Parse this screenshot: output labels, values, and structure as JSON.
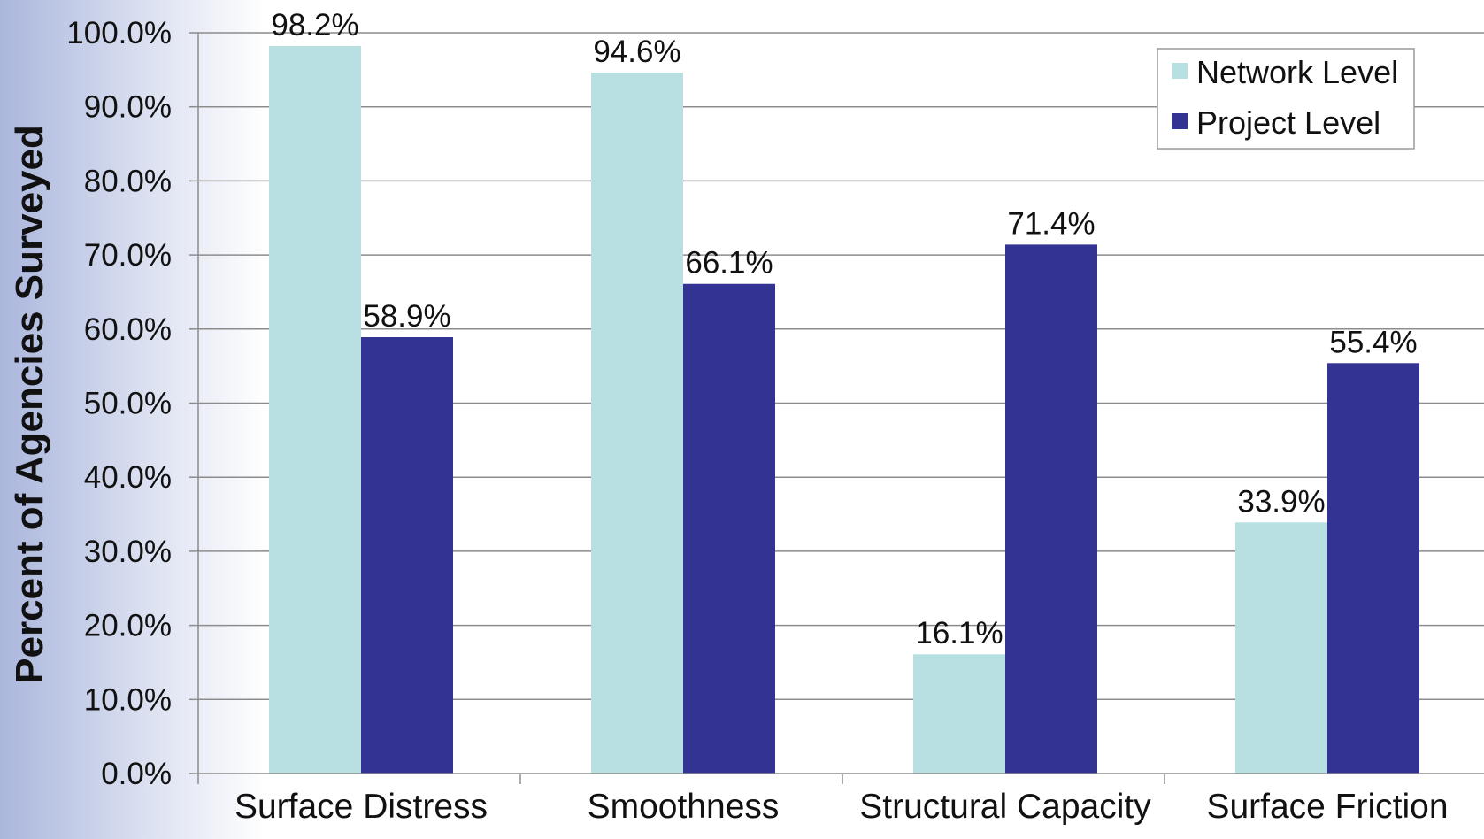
{
  "chart_data": {
    "type": "bar",
    "title": "",
    "xlabel": "",
    "ylabel": "Percent of Agencies Surveyed",
    "categories": [
      "Surface Distress",
      "Smoothness",
      "Structural Capacity",
      "Surface Friction"
    ],
    "series": [
      {
        "name": "Network Level",
        "color": "#b8e0e2",
        "values": [
          98.2,
          94.6,
          16.1,
          33.9
        ],
        "labels": [
          "98.2%",
          "94.6%",
          "16.1%",
          "33.9%"
        ]
      },
      {
        "name": "Project Level",
        "color": "#333394",
        "values": [
          58.9,
          66.1,
          71.4,
          55.4
        ],
        "labels": [
          "58.9%",
          "66.1%",
          "71.4%",
          "55.4%"
        ]
      }
    ],
    "ylim": [
      0,
      100
    ],
    "yticks": [
      "0.0%",
      "10.0%",
      "20.0%",
      "30.0%",
      "40.0%",
      "50.0%",
      "60.0%",
      "70.0%",
      "80.0%",
      "90.0%",
      "100.0%"
    ],
    "grid": true,
    "legend_position": "top-right",
    "gridline_color": "#8c8c8c"
  }
}
